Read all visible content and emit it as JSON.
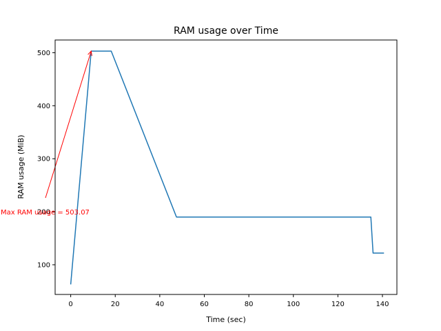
{
  "chart_data": {
    "type": "line",
    "title": "RAM usage over Time",
    "xlabel": "Time (sec)",
    "ylabel": "RAM usage (MiB)",
    "xlim": [
      -7,
      146.5
    ],
    "ylim": [
      44,
      524
    ],
    "x_ticks": [
      0,
      20,
      40,
      60,
      80,
      100,
      120,
      140
    ],
    "y_ticks": [
      100,
      200,
      300,
      400,
      500
    ],
    "grid": false,
    "series": [
      {
        "color": "#1f77b4",
        "x": [
          0,
          9.2,
          18.2,
          47.5,
          134.8,
          135.8,
          140.7
        ],
        "y": [
          63,
          503.07,
          503.07,
          190,
          190,
          122,
          122
        ]
      }
    ],
    "annotations": [
      {
        "text": "Max RAM usage = 503.07",
        "color": "#ff0000",
        "xy": [
          9.2,
          503.07
        ],
        "xytext": [
          -11.5,
          199.5
        ]
      }
    ]
  }
}
